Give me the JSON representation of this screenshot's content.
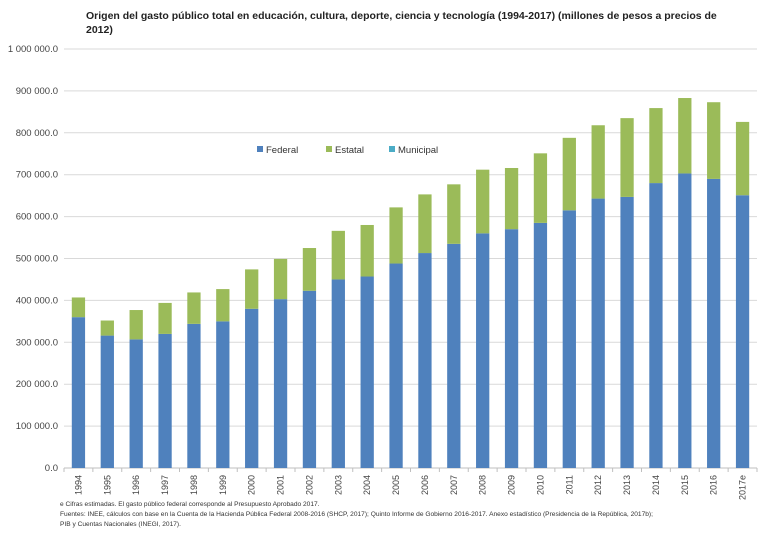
{
  "chart_data": {
    "type": "bar",
    "stacked": true,
    "title": "Origen del gasto público total en educación, cultura, deporte, ciencia y tecnología (1994-2017) (millones de pesos a precios de 2012)",
    "categories": [
      "1994",
      "1995",
      "1996",
      "1997",
      "1998",
      "1999",
      "2000",
      "2001",
      "2002",
      "2003",
      "2004",
      "2005",
      "2006",
      "2007",
      "2008",
      "2009",
      "2010",
      "2011",
      "2012",
      "2013",
      "2014",
      "2015",
      "2016",
      "2017e"
    ],
    "series": [
      {
        "name": "Federal",
        "color": "#4f81bd",
        "values": [
          360000,
          316000,
          307000,
          320000,
          344000,
          350000,
          380000,
          403000,
          423000,
          450000,
          457000,
          488000,
          513000,
          535000,
          560000,
          570000,
          585000,
          615000,
          643000,
          647000,
          680000,
          703000,
          690000,
          651000
        ]
      },
      {
        "name": "Estatal",
        "color": "#9bbb59",
        "values": [
          47000,
          36000,
          70000,
          74000,
          75000,
          77000,
          94000,
          96000,
          102000,
          116000,
          123000,
          134000,
          140000,
          142000,
          152000,
          146000,
          166000,
          173000,
          175000,
          188000,
          179000,
          180000,
          183000,
          175000
        ]
      },
      {
        "name": "Municipal",
        "color": "#4bacc6",
        "values": [
          0,
          0,
          0,
          0,
          0,
          0,
          0,
          0,
          0,
          0,
          0,
          0,
          0,
          0,
          0,
          0,
          0,
          0,
          0,
          0,
          0,
          0,
          0,
          0
        ]
      }
    ],
    "ylim": [
      0,
      1000000
    ],
    "yticks": [
      "0.0",
      "100 000.0",
      "200 000.0",
      "300 000.0",
      "400 000.0",
      "500 000.0",
      "600 000.0",
      "700 000.0",
      "800 000.0",
      "900 000.0",
      "1 000 000.0"
    ],
    "grid": true,
    "legend_position": "top-center"
  },
  "notes": [
    "e Cifras estimadas.  El gasto público federal  corresponde al Presupuesto Aprobado 2017.",
    "Fuentes:  INEE, cálculos con base en la Cuenta de la Hacienda Pública Federal  2008-2016 (SHCP, 2017); Quinto Informe de Gobierno 2016-2017. Anexo estadístico (Presidencia de la República,  2017b);",
    "PIB y Cuentas  Nacionales (INEGI, 2017)."
  ]
}
